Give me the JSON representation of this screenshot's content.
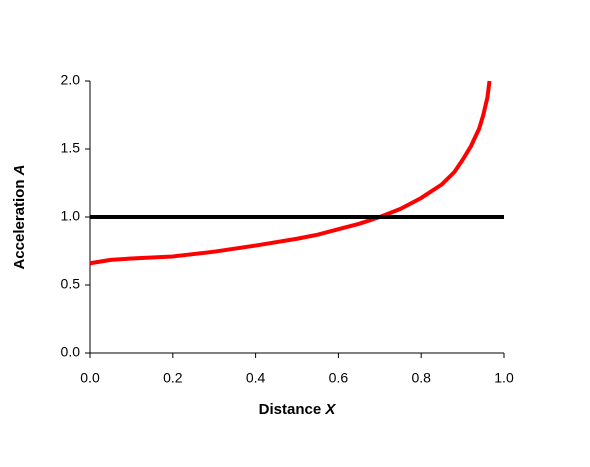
{
  "chart_data": {
    "type": "line",
    "x_label": {
      "text": "Distance",
      "symbol": "X"
    },
    "y_label": {
      "text": "Acceleration",
      "symbol": "A"
    },
    "xlim": [
      0,
      1
    ],
    "ylim": [
      0,
      2
    ],
    "xticks": [
      {
        "value": 0,
        "label": "0.0"
      },
      0.2,
      0.4,
      0.6,
      0.8,
      {
        "value": 1,
        "label": "1.0"
      }
    ],
    "yticks": [
      {
        "value": 0,
        "label": "0.0"
      },
      0.5,
      {
        "value": 1,
        "label": "1.0"
      },
      1.5,
      {
        "value": 2,
        "label": "2.0"
      }
    ],
    "grid": false,
    "series": [
      {
        "color": "#ff0000",
        "x": [
          0,
          0.05,
          0.1,
          0.2,
          0.3,
          0.4,
          0.5,
          0.55,
          0.6,
          0.65,
          0.7,
          0.75,
          0.8,
          0.85,
          0.88,
          0.9,
          0.92,
          0.94,
          0.95,
          0.96,
          0.965
        ],
        "values": [
          0.66,
          0.685,
          0.695,
          0.71,
          0.745,
          0.79,
          0.84,
          0.87,
          0.91,
          0.95,
          1.0,
          1.06,
          1.14,
          1.24,
          1.33,
          1.42,
          1.52,
          1.65,
          1.75,
          1.88,
          2.0
        ]
      },
      {
        "color": "#000000",
        "x": [
          0,
          1
        ],
        "values": [
          1,
          1
        ]
      }
    ]
  }
}
